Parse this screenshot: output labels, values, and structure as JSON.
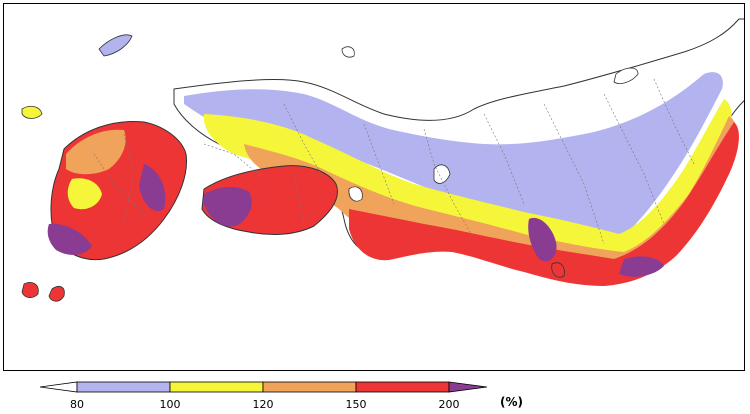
{
  "legend": {
    "unit": "(%)",
    "ticks": [
      "80",
      "100",
      "120",
      "150",
      "200"
    ],
    "classes": [
      {
        "range": "<80",
        "color": "#ffffff"
      },
      {
        "range": "80-100",
        "color": "#b3b3f0"
      },
      {
        "range": "100-120",
        "color": "#f5f53a"
      },
      {
        "range": "120-150",
        "color": "#f0a35a"
      },
      {
        "range": "150-200",
        "color": "#ee3535"
      },
      {
        "range": ">200",
        "color": "#8a3c93"
      }
    ]
  },
  "colors": {
    "land_outline": "#333333",
    "prefecture_border": "#777777",
    "sea": "#ffffff"
  }
}
